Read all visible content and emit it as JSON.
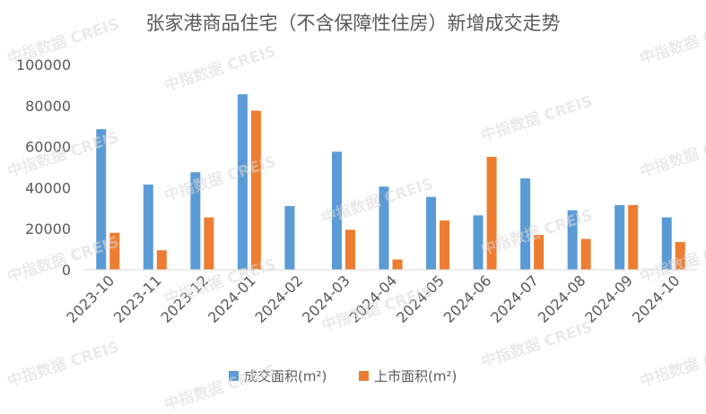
{
  "watermark": "中指数据 CREIS",
  "chart_data": {
    "type": "bar",
    "title": "张家港商品住宅（不含保障性住房）新增成交走势",
    "xlabel": "",
    "ylabel": "",
    "categories": [
      "2023-10",
      "2023-11",
      "2023-12",
      "2024-01",
      "2024-02",
      "2024-03",
      "2024-04",
      "2024-05",
      "2024-06",
      "2024-07",
      "2024-08",
      "2024-09",
      "2024-10"
    ],
    "series": [
      {
        "name": "成交面积(m²)",
        "color": "#5b9bd5",
        "values": [
          68500,
          41500,
          47500,
          85500,
          31000,
          57500,
          40500,
          35500,
          26500,
          44500,
          29000,
          31500,
          25500
        ]
      },
      {
        "name": "上市面积(m²)",
        "color": "#ed7d31",
        "values": [
          18000,
          9500,
          25500,
          77500,
          0,
          19500,
          5000,
          24000,
          55000,
          17000,
          15000,
          31500,
          13500
        ]
      }
    ],
    "ylim": [
      0,
      100000
    ],
    "yticks": [
      0,
      20000,
      40000,
      60000,
      80000,
      100000
    ],
    "grid": false,
    "legend_position": "bottom"
  }
}
